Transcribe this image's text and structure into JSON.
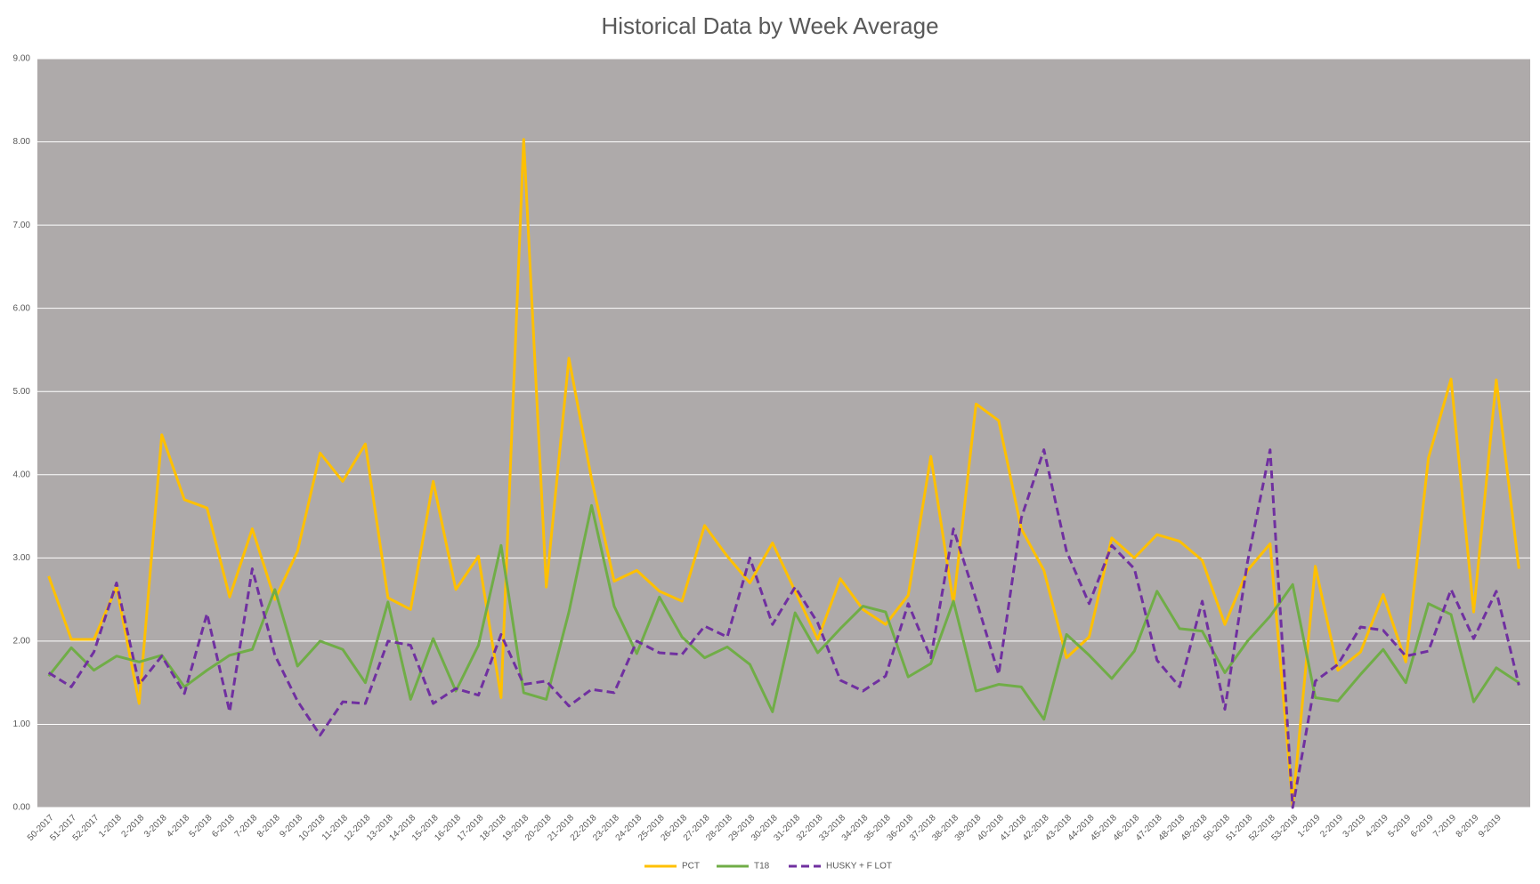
{
  "chart_data": {
    "type": "line",
    "title": "Historical Data by Week Average",
    "categories": [
      "50-2017",
      "51-2017",
      "52-2017",
      "1-2018",
      "2-2018",
      "3-2018",
      "4-2018",
      "5-2018",
      "6-2018",
      "7-2018",
      "8-2018",
      "9-2018",
      "10-2018",
      "11-2018",
      "12-2018",
      "13-2018",
      "14-2018",
      "15-2018",
      "16-2018",
      "17-2018",
      "18-2018",
      "19-2018",
      "20-2018",
      "21-2018",
      "22-2018",
      "23-2018",
      "24-2018",
      "25-2018",
      "26-2018",
      "27-2018",
      "28-2018",
      "29-2018",
      "30-2018",
      "31-2018",
      "32-2018",
      "33-2018",
      "34-2018",
      "35-2018",
      "36-2018",
      "37-2018",
      "38-2018",
      "39-2018",
      "40-2018",
      "41-2018",
      "42-2018",
      "43-2018",
      "44-2018",
      "45-2018",
      "46-2018",
      "47-2018",
      "48-2018",
      "49-2018",
      "50-2018",
      "51-2018",
      "52-2018",
      "53-2018",
      "1-2019",
      "2-2019",
      "3-2019",
      "4-2019",
      "5-2019",
      "6-2019",
      "7-2019",
      "8-2019",
      "9-2019",
      null
    ],
    "series": [
      {
        "name": "PCT",
        "color": "#ffc000",
        "dashed": false,
        "values": [
          2.78,
          2.02,
          2.02,
          2.65,
          1.25,
          4.48,
          3.7,
          3.6,
          2.53,
          3.35,
          2.5,
          3.08,
          4.26,
          3.92,
          4.37,
          2.52,
          2.38,
          3.92,
          2.62,
          3.02,
          1.32,
          8.03,
          2.65,
          5.4,
          3.95,
          2.72,
          2.85,
          2.6,
          2.48,
          3.39,
          3.02,
          2.7,
          3.18,
          2.6,
          2.02,
          2.75,
          2.38,
          2.2,
          2.55,
          4.22,
          2.45,
          4.85,
          4.65,
          3.35,
          2.85,
          1.8,
          2.05,
          3.24,
          3.0,
          3.28,
          3.2,
          2.97,
          2.2,
          2.85,
          3.17,
          0.02,
          2.9,
          1.65,
          1.87,
          2.56,
          1.75,
          4.2,
          5.15,
          2.35,
          5.14,
          2.87
        ]
      },
      {
        "name": "T18",
        "color": "#70ad47",
        "dashed": false,
        "values": [
          1.58,
          1.92,
          1.65,
          1.82,
          1.75,
          1.83,
          1.45,
          1.65,
          1.83,
          1.9,
          2.62,
          1.7,
          2.0,
          1.9,
          1.5,
          2.47,
          1.3,
          2.03,
          1.4,
          1.95,
          3.15,
          1.38,
          1.3,
          2.35,
          3.63,
          2.42,
          1.85,
          2.53,
          2.05,
          1.8,
          1.93,
          1.72,
          1.15,
          2.34,
          1.86,
          2.15,
          2.42,
          2.35,
          1.57,
          1.73,
          2.48,
          1.4,
          1.48,
          1.45,
          1.06,
          2.08,
          1.83,
          1.55,
          1.88,
          2.6,
          2.15,
          2.12,
          1.62,
          2.0,
          2.3,
          2.68,
          1.32,
          1.28,
          1.6,
          1.9,
          1.5,
          2.45,
          2.32,
          1.27,
          1.68,
          1.5
        ]
      },
      {
        "name": "HUSKY + F LOT",
        "color": "#7030a0",
        "dashed": true,
        "values": [
          1.62,
          1.45,
          1.87,
          2.7,
          1.48,
          1.82,
          1.37,
          2.33,
          1.15,
          2.87,
          1.83,
          1.28,
          0.87,
          1.27,
          1.25,
          2.0,
          1.95,
          1.25,
          1.43,
          1.35,
          2.08,
          1.48,
          1.52,
          1.22,
          1.42,
          1.38,
          2.0,
          1.86,
          1.84,
          2.18,
          2.05,
          3.0,
          2.2,
          2.65,
          2.22,
          1.53,
          1.4,
          1.58,
          2.45,
          1.8,
          3.35,
          2.5,
          1.6,
          3.48,
          4.3,
          3.08,
          2.45,
          3.15,
          2.87,
          1.77,
          1.45,
          2.48,
          1.18,
          2.95,
          4.3,
          0.0,
          1.52,
          1.72,
          2.17,
          2.13,
          1.82,
          1.88,
          2.62,
          2.03,
          2.6,
          1.47
        ]
      }
    ],
    "ylim": [
      0,
      9
    ],
    "yticks": [
      {
        "value": 0,
        "label": "0.00"
      },
      {
        "value": 1,
        "label": "1.00"
      },
      {
        "value": 2,
        "label": "2.00"
      },
      {
        "value": 3,
        "label": "3.00"
      },
      {
        "value": 4,
        "label": "4.00"
      },
      {
        "value": 5,
        "label": "5.00"
      },
      {
        "value": 6,
        "label": "6.00"
      },
      {
        "value": 7,
        "label": "7.00"
      },
      {
        "value": 8,
        "label": "8.00"
      },
      {
        "value": 9,
        "label": "9.00"
      }
    ],
    "grid": true,
    "legend": "bottom"
  }
}
